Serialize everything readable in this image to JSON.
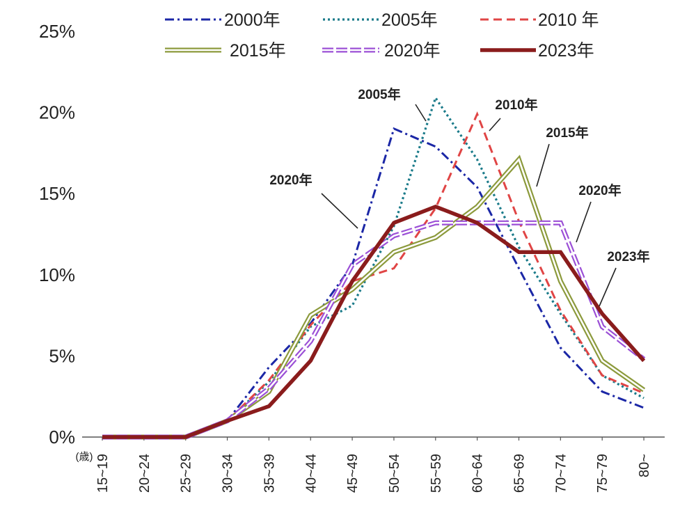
{
  "chart_data": {
    "type": "line",
    "categories": [
      "15~19",
      "20~24",
      "25~29",
      "30~34",
      "35~39",
      "40~44",
      "45~49",
      "50~54",
      "55~59",
      "60~64",
      "65~69",
      "70~74",
      "75~79",
      "80~"
    ],
    "x_unit": "(歳)",
    "y_ticks": [
      "0%",
      "5%",
      "10%",
      "15%",
      "20%",
      "25%"
    ],
    "ylim": [
      0,
      25
    ],
    "grid": false,
    "legend_position": "top",
    "series": [
      {
        "name": "2000年",
        "color": "#1b27a6",
        "line_style": "dash-dot",
        "values": [
          0,
          0,
          0,
          1.0,
          4.3,
          7.0,
          10.6,
          19.0,
          17.9,
          15.4,
          10.4,
          5.5,
          2.8,
          1.8
        ]
      },
      {
        "name": "2005年",
        "color": "#1b7b8a",
        "line_style": "dotted",
        "values": [
          0,
          0,
          0,
          1.0,
          3.4,
          6.8,
          8.1,
          13.0,
          20.9,
          17.1,
          11.7,
          7.6,
          3.8,
          2.4
        ]
      },
      {
        "name": "2010 年",
        "color": "#e04545",
        "line_style": "dashed",
        "values": [
          0,
          0,
          0,
          1.0,
          3.5,
          6.9,
          9.6,
          10.4,
          14.1,
          19.9,
          13.3,
          7.8,
          3.8,
          2.7
        ]
      },
      {
        "name": "2015年",
        "color": "#8c9a3c",
        "line_style": "double",
        "values": [
          0,
          0,
          0,
          1.0,
          2.8,
          7.5,
          9.1,
          11.4,
          12.3,
          14.2,
          17.1,
          9.6,
          4.7,
          2.9
        ]
      },
      {
        "name": "2020年",
        "color": "#9b4fd6",
        "line_style": "double-dashed",
        "values": [
          0,
          0,
          0,
          1.0,
          3.0,
          5.9,
          10.6,
          12.4,
          13.2,
          13.2,
          13.2,
          13.2,
          6.8,
          4.8
        ]
      },
      {
        "name": "2023年",
        "color": "#8a1c1c",
        "line_style": "solid-thick",
        "values": [
          0,
          0,
          0,
          1.0,
          1.9,
          4.7,
          9.6,
          13.2,
          14.2,
          13.2,
          11.4,
          11.4,
          7.6,
          4.7
        ]
      }
    ],
    "annotations": [
      "2005年",
      "2010年",
      "2015年",
      "2020年",
      "2020年",
      "2023年"
    ]
  }
}
